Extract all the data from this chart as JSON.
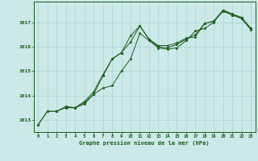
{
  "title": "Graphe pression niveau de la mer (hPa)",
  "bg_color": "#cce8e8",
  "line_color": "#1a5c1a",
  "marker_color": "#1a5c1a",
  "xlim": [
    -0.5,
    23.5
  ],
  "ylim": [
    1012.5,
    1017.85
  ],
  "yticks": [
    1013,
    1014,
    1015,
    1016,
    1017
  ],
  "xticks": [
    0,
    1,
    2,
    3,
    4,
    5,
    6,
    7,
    8,
    9,
    10,
    11,
    12,
    13,
    14,
    15,
    16,
    17,
    18,
    19,
    20,
    21,
    22,
    23
  ],
  "series1_x": [
    0,
    1,
    2,
    3,
    4,
    5,
    6,
    7,
    8,
    9,
    10,
    11,
    12,
    13,
    14,
    15,
    16,
    17,
    18,
    19,
    20,
    21,
    22,
    23
  ],
  "series1_y": [
    1012.8,
    1013.35,
    1013.35,
    1013.5,
    1013.5,
    1013.7,
    1014.05,
    1014.8,
    1015.5,
    1015.75,
    1016.45,
    1016.85,
    1016.3,
    1016.05,
    1016.05,
    1016.15,
    1016.35,
    1016.4,
    1016.95,
    1017.05,
    1017.5,
    1017.3,
    1017.2,
    1016.75
  ],
  "series2_x": [
    0,
    1,
    2,
    3,
    4,
    5,
    6,
    7,
    8,
    9,
    10,
    11,
    12,
    13,
    14,
    15,
    16,
    17,
    18,
    19,
    20,
    21,
    22,
    23
  ],
  "series2_y": [
    1012.8,
    1013.35,
    1013.35,
    1013.55,
    1013.5,
    1013.75,
    1014.15,
    1014.85,
    1015.5,
    1015.75,
    1016.2,
    1016.85,
    1016.3,
    1016.0,
    1015.95,
    1016.1,
    1016.3,
    1016.5,
    1016.95,
    1017.05,
    1017.45,
    1017.3,
    1017.15,
    1016.7
  ],
  "series3_x": [
    3,
    4,
    5,
    6,
    7,
    8,
    9,
    10,
    11,
    12,
    13,
    14,
    15,
    16,
    17,
    18,
    19,
    20,
    21,
    22,
    23
  ],
  "series3_y": [
    1013.5,
    1013.5,
    1013.65,
    1014.05,
    1014.3,
    1014.4,
    1015.0,
    1015.5,
    1016.55,
    1016.25,
    1015.95,
    1015.9,
    1015.95,
    1016.25,
    1016.65,
    1016.75,
    1017.0,
    1017.5,
    1017.35,
    1017.2,
    1016.75
  ]
}
